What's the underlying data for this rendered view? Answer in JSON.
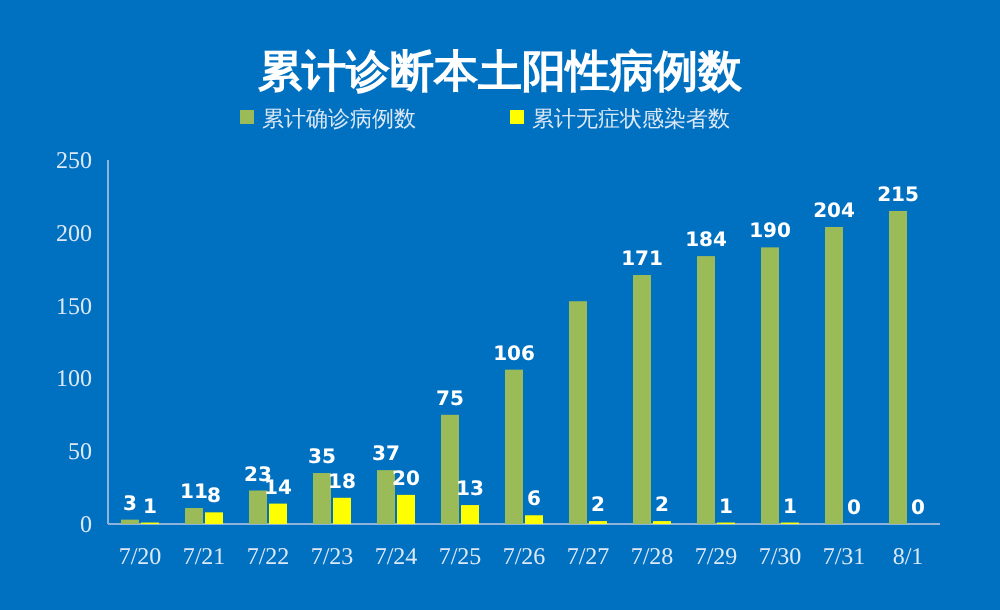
{
  "chart_data": {
    "type": "bar",
    "title": "累计诊断本土阳性病例数",
    "categories": [
      "7/20",
      "7/21",
      "7/22",
      "7/23",
      "7/24",
      "7/25",
      "7/26",
      "7/27",
      "7/28",
      "7/29",
      "7/30",
      "7/31",
      "8/1"
    ],
    "series": [
      {
        "name": "累计确诊病例数",
        "color": "#9bbb59",
        "values": [
          3,
          11,
          23,
          35,
          37,
          75,
          106,
          153,
          171,
          184,
          190,
          204,
          215
        ],
        "value_labels": [
          "3",
          "11",
          "23",
          "35",
          "37",
          "75",
          "106",
          null,
          "171",
          "184",
          "190",
          "204",
          "215"
        ]
      },
      {
        "name": "累计无症状感染者数",
        "color": "#ffff00",
        "values": [
          1,
          8,
          14,
          18,
          20,
          13,
          6,
          2,
          2,
          1,
          1,
          0,
          0
        ],
        "value_labels": [
          "1",
          "8",
          "14",
          "18",
          "20",
          "13",
          "6",
          "2",
          "2",
          "1",
          "1",
          "0",
          "0"
        ]
      }
    ],
    "ylim": [
      0,
      250
    ],
    "yticks": [
      0,
      50,
      100,
      150,
      200,
      250
    ],
    "legend": "top",
    "grid": false
  }
}
